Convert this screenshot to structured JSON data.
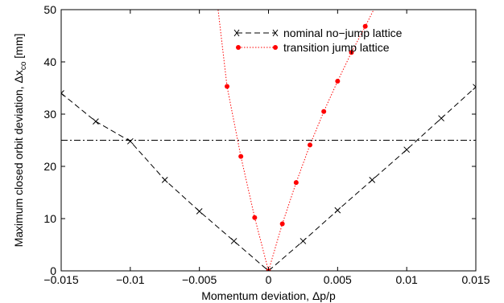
{
  "chart_data": {
    "type": "line",
    "xlabel": "Momentum deviation, Δp/p",
    "ylabel_main": "Maximum closed orbit deviation, Δx",
    "ylabel_sub": "co",
    "ylabel_unit": " [mm]",
    "xlim": [
      -0.015,
      0.015
    ],
    "ylim": [
      0,
      50
    ],
    "xticks": [
      -0.015,
      -0.01,
      -0.005,
      0,
      0.005,
      0.01,
      0.015
    ],
    "xtick_labels": [
      "−0.015",
      "−0.01",
      "−0.005",
      "0",
      "0.005",
      "0.01",
      "0.015"
    ],
    "yticks": [
      0,
      10,
      20,
      30,
      40,
      50
    ],
    "ytick_labels": [
      "0",
      "10",
      "20",
      "30",
      "40",
      "50"
    ],
    "legend_position": "top-right",
    "series": [
      {
        "name": "nominal no−jump lattice",
        "color": "#000000",
        "line_style": "dashed",
        "marker": "x",
        "x": [
          -0.015,
          -0.0125,
          -0.01,
          -0.0075,
          -0.005,
          -0.0025,
          0,
          0.0025,
          0.005,
          0.0075,
          0.01,
          0.0125,
          0.015
        ],
        "y": [
          34,
          28.6,
          24.8,
          17.4,
          11.4,
          5.7,
          0,
          5.7,
          11.6,
          17.4,
          23.2,
          29.2,
          35.2
        ]
      },
      {
        "name": "transition jump lattice",
        "color": "#ff0000",
        "line_style": "dotted",
        "marker": "dot",
        "x": [
          -0.004,
          -0.003,
          -0.002,
          -0.001,
          0,
          0.001,
          0.002,
          0.003,
          0.004,
          0.005,
          0.006,
          0.007,
          0.008
        ],
        "y": [
          58,
          35.3,
          21.9,
          10.2,
          0,
          9.0,
          16.9,
          24.1,
          30.5,
          36.3,
          41.8,
          46.8,
          52
        ]
      }
    ],
    "reference_line": {
      "y": 25,
      "color": "#000000",
      "line_style": "dash-dot"
    }
  }
}
